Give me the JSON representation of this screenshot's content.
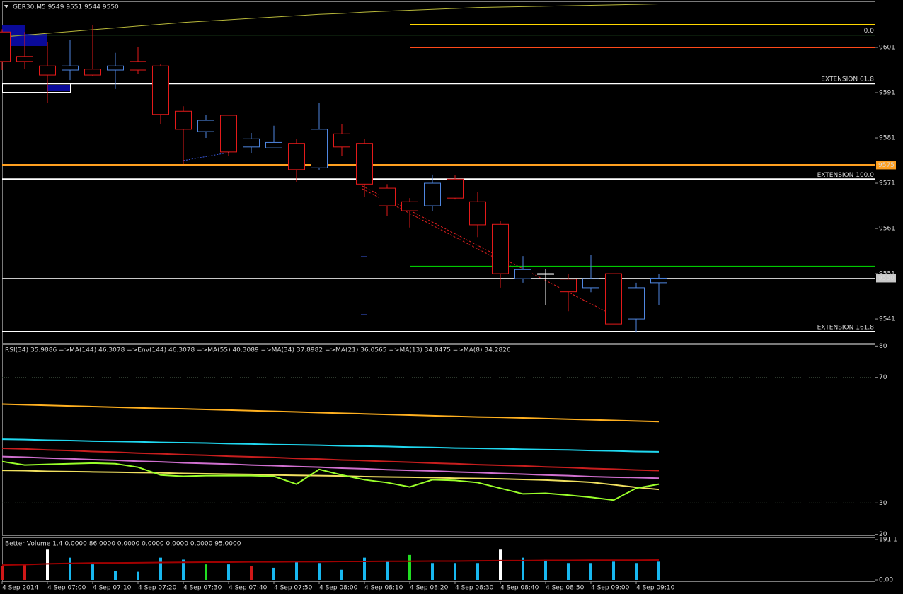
{
  "chart_data": [
    {
      "type": "candlestick",
      "title": "GER30,M5  9549 9551 9544 9550",
      "categories": [
        "4 Sep 2014",
        null,
        "4 Sep 07:00",
        null,
        "4 Sep 07:10",
        null,
        "4 Sep 07:20",
        null,
        "4 Sep 07:30",
        null,
        "4 Sep 07:40",
        null,
        "4 Sep 07:50",
        null,
        "4 Sep 08:00",
        null,
        "4 Sep 08:10",
        null,
        "4 Sep 08:20",
        null,
        "4 Sep 08:30",
        null,
        "4 Sep 08:40",
        null,
        "4 Sep 08:50",
        null,
        "4 Sep 09:00",
        null,
        "4 Sep 09:10",
        null
      ],
      "open": [
        9604.4,
        9599.0,
        9596.9,
        9596.0,
        9596.2,
        9596.0,
        9597.9,
        9596.9,
        9586.9,
        9582.4,
        9586.0,
        9579.0,
        9578.8,
        9579.8,
        9574.4,
        9581.9,
        9579.8,
        9569.9,
        9566.9,
        9566.0,
        9571.9,
        9566.9,
        9561.9,
        9549.9,
        9551.0,
        9549.8,
        9547.9,
        9551.0,
        9541.0,
        9549
      ],
      "high": [
        9605.0,
        9604.4,
        9602.1,
        9602.6,
        9606.0,
        9599.8,
        9601.0,
        9597.4,
        9588.0,
        9586.0,
        9586.0,
        9582.1,
        9583.7,
        9580.8,
        9588.8,
        9584.0,
        9580.8,
        9570.8,
        9567.7,
        9572.9,
        9572.7,
        9569.0,
        9562.7,
        9554.9,
        9551.8,
        9551.0,
        9555.2,
        9551.0,
        9549.0,
        9551
      ],
      "low": [
        9596.0,
        9596.3,
        9588.8,
        9593.8,
        9594.6,
        9591.8,
        9595.1,
        9584.1,
        9575.2,
        9581.0,
        9577.1,
        9577.7,
        9579.0,
        9571.2,
        9574.0,
        9577.1,
        9568.0,
        9563.8,
        9561.2,
        9564.9,
        9567.4,
        9559.1,
        9547.9,
        9549.0,
        9544.0,
        9542.7,
        9546.9,
        9539.9,
        9538.0,
        9544
      ],
      "close": [
        9597.9,
        9597.9,
        9594.9,
        9596.9,
        9594.9,
        9596.9,
        9596.0,
        9586.2,
        9582.9,
        9584.9,
        9577.9,
        9580.8,
        9580.0,
        9574.0,
        9582.9,
        9579.0,
        9570.8,
        9566.0,
        9564.9,
        9571.0,
        9567.7,
        9561.8,
        9551.0,
        9551.9,
        9551.0,
        9547.0,
        9549.9,
        9539.9,
        9547.9,
        9550
      ],
      "bull_color": "#4f86e0",
      "bear_color": "#e41a1a",
      "doji_color": "#ffffff",
      "ma": {
        "color": "#b8b83a",
        "values": [
          9603.3,
          9603.7,
          9604.1,
          9604.5,
          9604.9,
          9605.3,
          9605.7,
          9606.1,
          9606.5,
          9606.8,
          9607.1,
          9607.4,
          9607.7,
          9608.0,
          9608.3,
          9608.5,
          9608.8,
          9609.0,
          9609.2,
          9609.4,
          9609.6,
          9609.8,
          9609.9,
          9610.0,
          9610.1,
          9610.2,
          9610.3,
          9610.4,
          9610.5,
          9610.6
        ]
      },
      "levels": [
        {
          "value": 9606,
          "color": "#ffd700",
          "start_index": 18,
          "width": 2
        },
        {
          "value": 9603.7,
          "color": "#2d6b2d",
          "label": "0.0",
          "label_style": "text",
          "width": 1
        },
        {
          "value": 9601,
          "color": "#ff4a1a",
          "start_index": 18,
          "width": 2
        },
        {
          "value": 9593,
          "color": "#ffffff",
          "label": "EXTENSION 61.8",
          "label_style": "text",
          "width": 2
        },
        {
          "value": 9575,
          "color": "#ffa020",
          "label_style": "box",
          "width": 3
        },
        {
          "value": 9571.9,
          "color": "#ffffff",
          "label": "EXTENSION 100.0",
          "label_style": "text",
          "width": 2
        },
        {
          "value": 9552.6,
          "color": "#00c800",
          "start_index": 18,
          "width": 2
        },
        {
          "value": 9550,
          "color": "#c8c8c8",
          "label_style": "box",
          "width": 1
        },
        {
          "value": 9538.2,
          "color": "#ffffff",
          "label": "EXTENSION 161.8",
          "label_style": "text",
          "width": 2
        }
      ],
      "ylim": [
        9535.7,
        9611
      ],
      "yticks": [
        9601,
        9591,
        9581,
        9571,
        9561,
        9551,
        9541
      ]
    },
    {
      "type": "line",
      "title": "RSI(34) 35.9886  =>MA(144) 46.3078  =>Env(144) 46.3078  =>MA(55) 40.3089  =>MA(34) 37.8982  =>MA(21) 36.0565  =>MA(13) 34.8475  =>MA(8) 34.2826",
      "series": [
        {
          "color": "#ffb020",
          "values": [
            61.5,
            61.3,
            61.1,
            60.9,
            60.7,
            60.5,
            60.3,
            60.1,
            60.0,
            59.8,
            59.6,
            59.4,
            59.2,
            59.0,
            58.8,
            58.6,
            58.4,
            58.2,
            58.0,
            57.8,
            57.6,
            57.4,
            57.3,
            57.1,
            56.9,
            56.7,
            56.5,
            56.3,
            56.1,
            55.9
          ]
        },
        {
          "color": "#20d8f0",
          "values": [
            50.3,
            50.2,
            50.0,
            49.9,
            49.7,
            49.6,
            49.5,
            49.3,
            49.2,
            49.1,
            48.9,
            48.8,
            48.6,
            48.5,
            48.4,
            48.2,
            48.1,
            48.0,
            47.8,
            47.7,
            47.5,
            47.4,
            47.3,
            47.1,
            47.0,
            46.9,
            46.7,
            46.6,
            46.4,
            46.3
          ]
        },
        {
          "color": "#c81e1e",
          "values": [
            47.4,
            47.2,
            46.9,
            46.7,
            46.4,
            46.2,
            45.9,
            45.7,
            45.4,
            45.2,
            44.9,
            44.7,
            44.5,
            44.2,
            44.0,
            43.7,
            43.5,
            43.2,
            43.0,
            42.7,
            42.5,
            42.2,
            42.0,
            41.8,
            41.5,
            41.3,
            41.0,
            40.8,
            40.5,
            40.3
          ]
        },
        {
          "color": "#d070d0",
          "values": [
            44.8,
            44.6,
            44.3,
            44.1,
            43.8,
            43.6,
            43.3,
            43.1,
            42.8,
            42.6,
            42.4,
            42.1,
            41.9,
            41.6,
            41.4,
            41.1,
            40.9,
            40.6,
            40.4,
            40.2,
            39.9,
            39.7,
            39.4,
            39.2,
            38.9,
            38.7,
            38.4,
            38.2,
            38.1,
            37.9
          ]
        },
        {
          "color": "#f0e060",
          "values": [
            40.4,
            40.3,
            40.1,
            40.0,
            39.9,
            39.8,
            39.7,
            39.6,
            39.4,
            39.3,
            39.2,
            39.1,
            38.9,
            38.8,
            38.7,
            38.6,
            38.4,
            38.3,
            38.2,
            38.1,
            37.9,
            37.8,
            37.7,
            37.5,
            37.3,
            37.0,
            36.6,
            35.8,
            35.0,
            34.3
          ]
        },
        {
          "color": "#9aff2a",
          "values": [
            43.2,
            42.1,
            42.3,
            42.5,
            42.7,
            42.5,
            41.4,
            38.9,
            38.5,
            38.7,
            38.7,
            38.7,
            38.5,
            36.0,
            40.7,
            38.9,
            37.4,
            36.5,
            35.1,
            37.4,
            37.2,
            36.5,
            34.7,
            32.9,
            33.1,
            32.5,
            31.8,
            30.9,
            34.7,
            36.0
          ]
        }
      ],
      "levels": [
        70,
        30
      ],
      "level_color": "#3a4a3a",
      "ylim": [
        19.7,
        80.3
      ],
      "yticks": [
        80,
        70,
        30,
        20
      ]
    },
    {
      "type": "bar",
      "title": "Better Volume 1.4 0.0000 86.0000 0.0000 0.0000 0.0000 0.0000 95.0000",
      "values": [
        63.7,
        70.1,
        143.3,
        105.1,
        73.3,
        41.4,
        38.2,
        105.1,
        95.6,
        73.3,
        73.3,
        63.7,
        57.3,
        86.0,
        79.6,
        47.8,
        105.1,
        89.2,
        117.8,
        79.6,
        79.6,
        79.6,
        143.3,
        105.1,
        95.6,
        79.6,
        79.6,
        86.0,
        79.6,
        86.0
      ],
      "colors": [
        "#d01818",
        "#d01818",
        "#ffffff",
        "#18b8f0",
        "#18b8f0",
        "#18b8f0",
        "#18b8f0",
        "#18b8f0",
        "#18b8f0",
        "#22dd22",
        "#18b8f0",
        "#d01818",
        "#18b8f0",
        "#18b8f0",
        "#18b8f0",
        "#18b8f0",
        "#18b8f0",
        "#18b8f0",
        "#22dd22",
        "#18b8f0",
        "#18b8f0",
        "#18b8f0",
        "#ffffff",
        "#18b8f0",
        "#18b8f0",
        "#18b8f0",
        "#18b8f0",
        "#18b8f0",
        "#18b8f0",
        "#18b8f0"
      ],
      "ma": {
        "color": "#a00000",
        "values": [
          70,
          72,
          76,
          78,
          80,
          80,
          81,
          82,
          83,
          84,
          84,
          85,
          85,
          86,
          86,
          87,
          87,
          88,
          88,
          89,
          89,
          90,
          91,
          91,
          92,
          92,
          93,
          93,
          93,
          94
        ]
      },
      "ylim": [
        0,
        191.1
      ],
      "yticks": [
        191.1,
        {
          "value": 0,
          "label": "0.00"
        }
      ]
    }
  ]
}
